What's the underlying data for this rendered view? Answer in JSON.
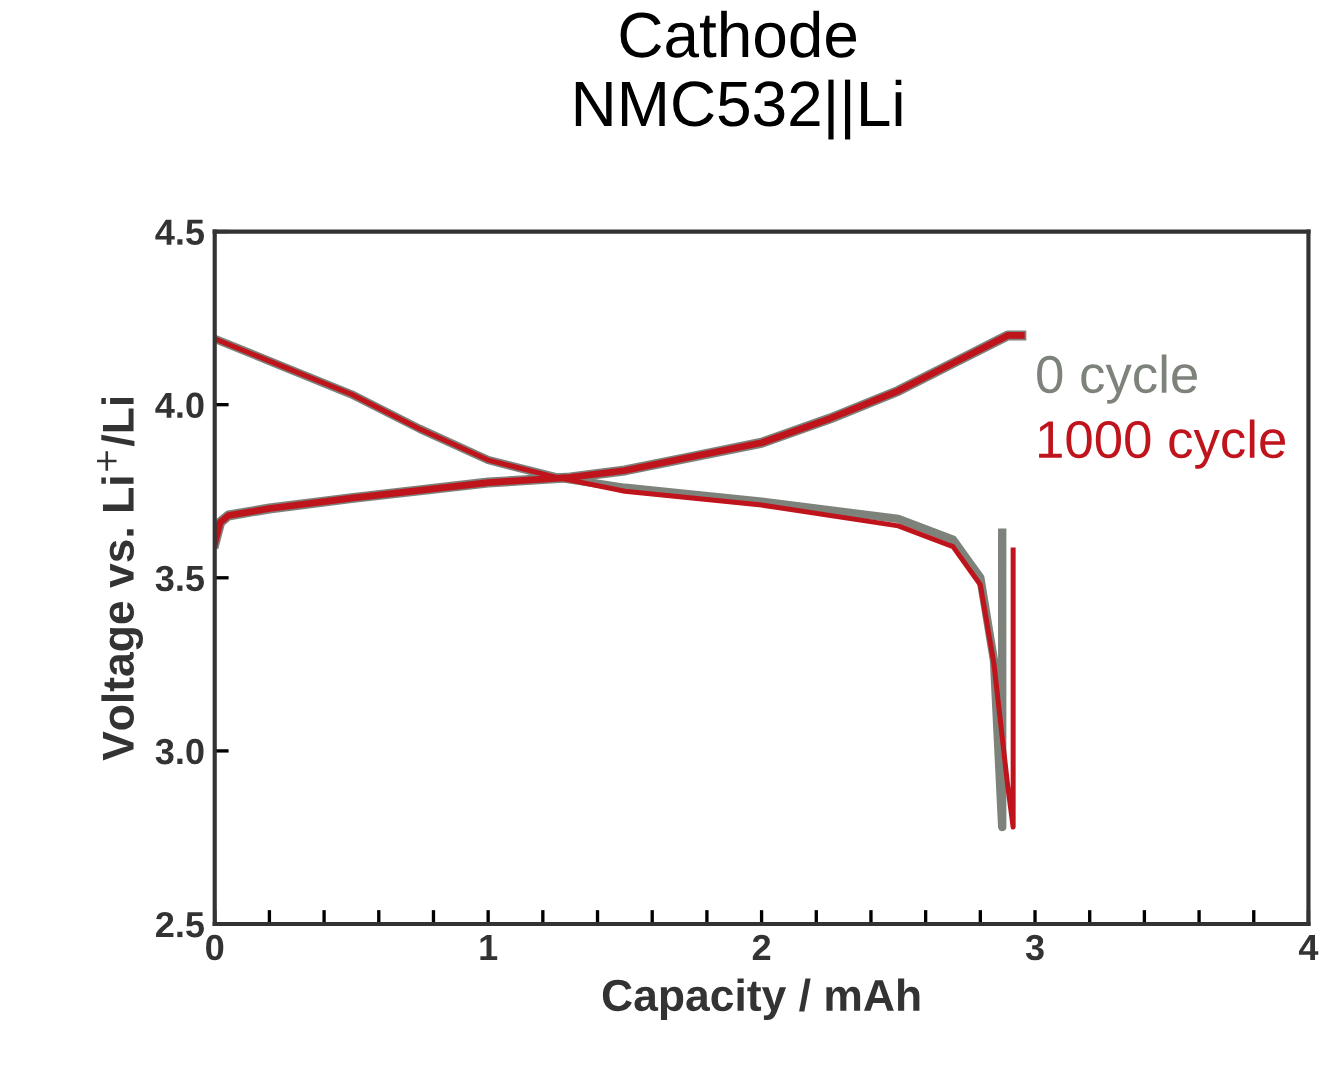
{
  "chart_data": {
    "type": "line",
    "title": "Cathode\nNMC532||Li",
    "xlabel": "Capacity / mAh",
    "ylabel": "Voltage vs. Li$^{+}$/Li",
    "xlim": [
      0,
      4
    ],
    "ylim": [
      2.5,
      4.5
    ],
    "xticks": [
      0,
      {
        "value": 0.2,
        "label": null
      },
      {
        "value": 0.4,
        "label": null
      },
      {
        "value": 0.6,
        "label": null
      },
      {
        "value": 0.8,
        "label": null
      },
      1,
      {
        "value": 1.2,
        "label": null
      },
      {
        "value": 1.4,
        "label": null
      },
      {
        "value": 1.6,
        "label": null
      },
      {
        "value": 1.8,
        "label": null
      },
      2,
      {
        "value": 2.2,
        "label": null
      },
      {
        "value": 2.4,
        "label": null
      },
      {
        "value": 2.6,
        "label": null
      },
      {
        "value": 2.8,
        "label": null
      },
      3,
      {
        "value": 3.2,
        "label": null
      },
      {
        "value": 3.4,
        "label": null
      },
      {
        "value": 3.6,
        "label": null
      },
      {
        "value": 3.8,
        "label": null
      },
      4
    ],
    "yticks": [
      {
        "value": 2.5,
        "label": "2.5"
      },
      {
        "value": 3.0,
        "label": "3.0"
      },
      {
        "value": 3.5,
        "label": "3.5"
      },
      {
        "value": 4.0,
        "label": "4.0"
      },
      {
        "value": 4.5,
        "label": "4.5"
      }
    ],
    "grid": false,
    "legend": "right",
    "marker": "none",
    "line_style": "solid",
    "series": [
      {
        "name": "0 cycle",
        "color": "#7d827b",
        "x": [
          0,
          0.02,
          0.05,
          0.2,
          0.5,
          1.0,
          1.3,
          1.5,
          1.75,
          2.0,
          2.25,
          2.5,
          2.7,
          2.9,
          2.95
        ],
        "values": [
          3.6,
          3.66,
          3.68,
          3.7,
          3.73,
          3.775,
          3.79,
          3.81,
          3.85,
          3.89,
          3.96,
          4.04,
          4.12,
          4.2,
          4.2
        ]
      },
      {
        "color": "#7d827b",
        "x": [
          0,
          0.25,
          0.5,
          0.75,
          1.0,
          1.25,
          1.5,
          2.0,
          2.5,
          2.7,
          2.8,
          2.85,
          2.88,
          2.88
        ],
        "values": [
          4.19,
          4.11,
          4.03,
          3.93,
          3.84,
          3.79,
          3.76,
          3.72,
          3.67,
          3.61,
          3.5,
          3.26,
          2.78,
          3.63
        ]
      },
      {
        "name": "1000 cycle",
        "color": "#c0141c",
        "x": [
          0,
          0.02,
          0.05,
          0.2,
          0.5,
          1.0,
          1.3,
          1.5,
          1.75,
          2.0,
          2.25,
          2.5,
          2.7,
          2.9,
          2.95
        ],
        "values": [
          3.6,
          3.66,
          3.68,
          3.7,
          3.73,
          3.775,
          3.79,
          3.81,
          3.85,
          3.89,
          3.96,
          4.04,
          4.12,
          4.2,
          4.2
        ]
      },
      {
        "color": "#c0141c",
        "x": [
          0,
          0.25,
          0.5,
          0.75,
          1.0,
          1.25,
          1.5,
          2.0,
          2.5,
          2.7,
          2.8,
          2.85,
          2.9,
          2.92,
          2.92
        ],
        "values": [
          4.19,
          4.11,
          4.03,
          3.93,
          3.84,
          3.79,
          3.75,
          3.71,
          3.65,
          3.59,
          3.48,
          3.25,
          2.9,
          2.78,
          3.58
        ]
      }
    ]
  }
}
